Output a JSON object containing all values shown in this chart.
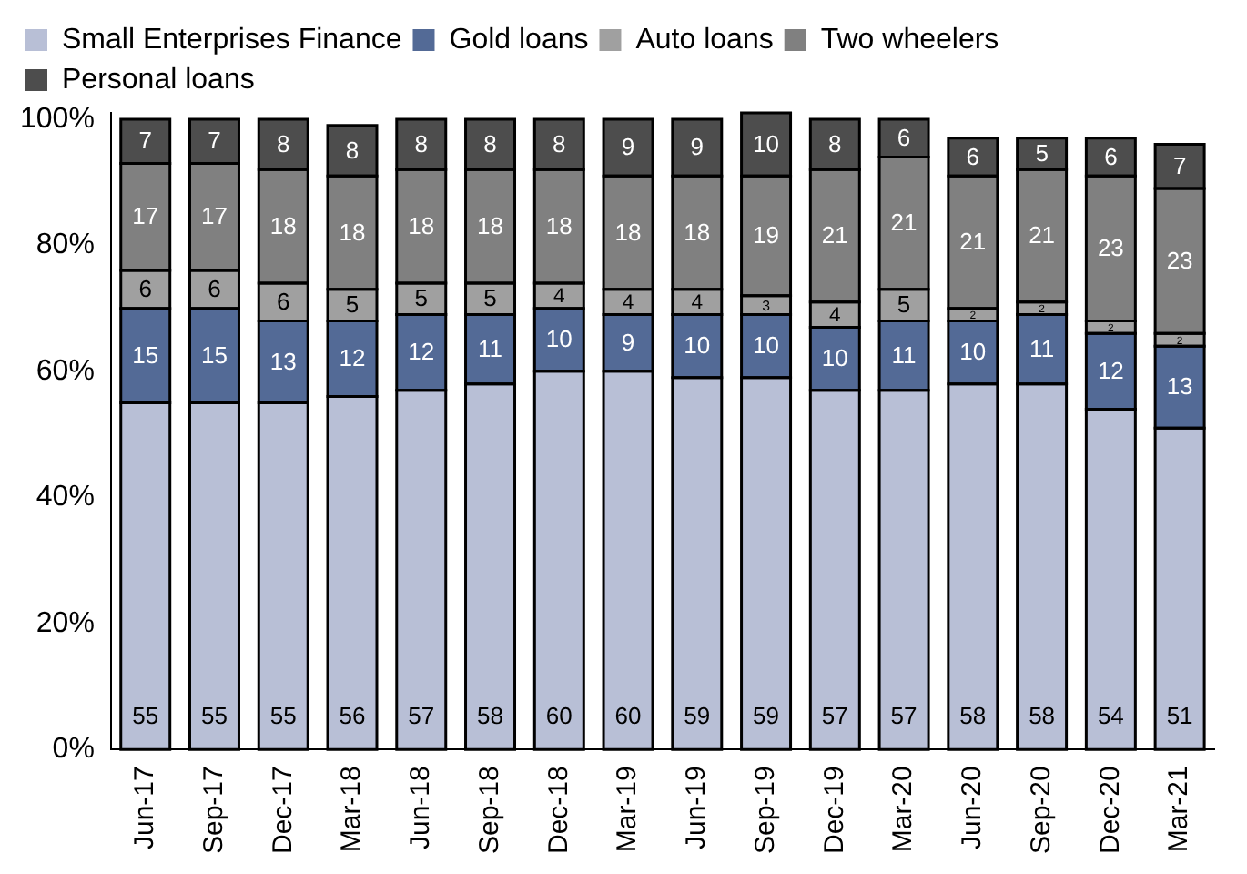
{
  "chart_data": {
    "type": "bar",
    "stacked": true,
    "categories": [
      "Jun-17",
      "Sep-17",
      "Dec-17",
      "Mar-18",
      "Jun-18",
      "Sep-18",
      "Dec-18",
      "Mar-19",
      "Jun-19",
      "Sep-19",
      "Dec-19",
      "Mar-20",
      "Jun-20",
      "Sep-20",
      "Dec-20",
      "Mar-21"
    ],
    "series": [
      {
        "name": "Small Enterprises Finance",
        "color": "#b8bfd6",
        "values": [
          55,
          55,
          55,
          56,
          57,
          58,
          60,
          60,
          59,
          59,
          57,
          57,
          58,
          58,
          54,
          51
        ]
      },
      {
        "name": "Gold loans",
        "color": "#536a96",
        "values": [
          15,
          15,
          13,
          12,
          12,
          11,
          10,
          9,
          10,
          10,
          10,
          11,
          10,
          11,
          12,
          13
        ]
      },
      {
        "name": "Auto loans",
        "color": "#a0a0a0",
        "values": [
          6,
          6,
          6,
          5,
          5,
          5,
          4,
          4,
          4,
          3,
          4,
          5,
          2,
          2,
          2,
          2
        ]
      },
      {
        "name": "Two wheelers",
        "color": "#808080",
        "values": [
          17,
          17,
          18,
          18,
          18,
          18,
          18,
          18,
          18,
          19,
          21,
          21,
          21,
          21,
          23,
          23
        ]
      },
      {
        "name": "Personal loans",
        "color": "#4d4d4d",
        "values": [
          7,
          7,
          8,
          8,
          8,
          8,
          8,
          9,
          9,
          10,
          8,
          6,
          6,
          5,
          6,
          7
        ]
      }
    ],
    "ylim": [
      0,
      101
    ],
    "yticks": [
      {
        "value": 0,
        "label": "0%"
      },
      {
        "value": 20,
        "label": "20%"
      },
      {
        "value": 40,
        "label": "40%"
      },
      {
        "value": 60,
        "label": "60%"
      },
      {
        "value": 80,
        "label": "80%"
      },
      {
        "value": 100,
        "label": "100%"
      }
    ],
    "grid": false,
    "legend": "top",
    "data_labels": true
  }
}
